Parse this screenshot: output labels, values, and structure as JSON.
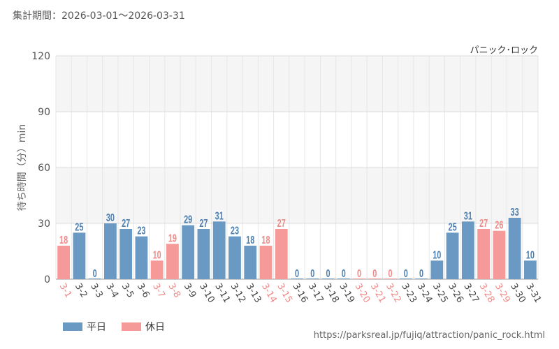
{
  "header": {
    "period": "集計期間：2026-03-01～2026-03-31",
    "attraction": "パニック･ロック"
  },
  "legend": {
    "weekday_label": "平日",
    "holiday_label": "休日"
  },
  "source_url": "https://parksreal.jp/fujiq/attraction/panic_rock.html",
  "colors": {
    "weekday": "#6a9ac4",
    "holiday": "#f59a98",
    "weekday_text": "#4d7fb0",
    "holiday_text": "#f08a88"
  },
  "chart_data": {
    "type": "bar",
    "title": "",
    "xlabel": "",
    "ylabel": "待ち時間（分）min",
    "ylim": [
      0,
      120
    ],
    "yticks": [
      0,
      30,
      60,
      90,
      120
    ],
    "grid": true,
    "legend_position": "bottom-left",
    "categories": [
      "3-1",
      "3-2",
      "3-3",
      "3-4",
      "3-5",
      "3-6",
      "3-7",
      "3-8",
      "3-9",
      "3-10",
      "3-11",
      "3-12",
      "3-13",
      "3-14",
      "3-15",
      "3-16",
      "3-17",
      "3-18",
      "3-19",
      "3-20",
      "3-21",
      "3-22",
      "3-23",
      "3-24",
      "3-25",
      "3-26",
      "3-27",
      "3-28",
      "3-29",
      "3-30",
      "3-31"
    ],
    "values": [
      18,
      25,
      0,
      30,
      27,
      23,
      10,
      19,
      29,
      27,
      31,
      23,
      18,
      18,
      27,
      0,
      0,
      0,
      0,
      0,
      0,
      0,
      0,
      0,
      10,
      25,
      31,
      27,
      26,
      33,
      10
    ],
    "day_type": [
      "holiday",
      "weekday",
      "weekday",
      "weekday",
      "weekday",
      "weekday",
      "holiday",
      "holiday",
      "weekday",
      "weekday",
      "weekday",
      "weekday",
      "weekday",
      "holiday",
      "holiday",
      "weekday",
      "weekday",
      "weekday",
      "weekday",
      "holiday",
      "holiday",
      "holiday",
      "weekday",
      "weekday",
      "weekday",
      "weekday",
      "weekday",
      "holiday",
      "holiday",
      "weekday",
      "weekday"
    ]
  }
}
